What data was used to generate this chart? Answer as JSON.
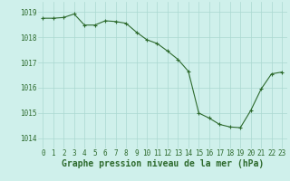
{
  "x": [
    0,
    1,
    2,
    3,
    4,
    5,
    6,
    7,
    8,
    9,
    10,
    11,
    12,
    13,
    14,
    15,
    16,
    17,
    18,
    19,
    20,
    21,
    22,
    23
  ],
  "y": [
    1018.75,
    1018.75,
    1018.78,
    1018.92,
    1018.48,
    1018.48,
    1018.65,
    1018.62,
    1018.55,
    1018.2,
    1017.9,
    1017.75,
    1017.45,
    1017.12,
    1016.65,
    1015.0,
    1014.8,
    1014.55,
    1014.45,
    1014.42,
    1015.1,
    1015.95,
    1016.55,
    1016.62
  ],
  "line_color": "#2d6a2d",
  "marker": "+",
  "marker_color": "#2d6a2d",
  "bg_color": "#cff0eb",
  "grid_color": "#aad8d0",
  "yticks": [
    1014,
    1015,
    1016,
    1017,
    1018,
    1019
  ],
  "xlabel": "Graphe pression niveau de la mer (hPa)",
  "xlabel_color": "#2d6a2d",
  "xlabel_fontsize": 7,
  "xlim": [
    -0.5,
    23.5
  ],
  "ylim": [
    1013.6,
    1019.4
  ],
  "tick_label_color": "#2d6a2d",
  "tick_fontsize": 5.5,
  "linewidth": 0.8,
  "markersize": 3.0,
  "markeredgewidth": 0.8
}
